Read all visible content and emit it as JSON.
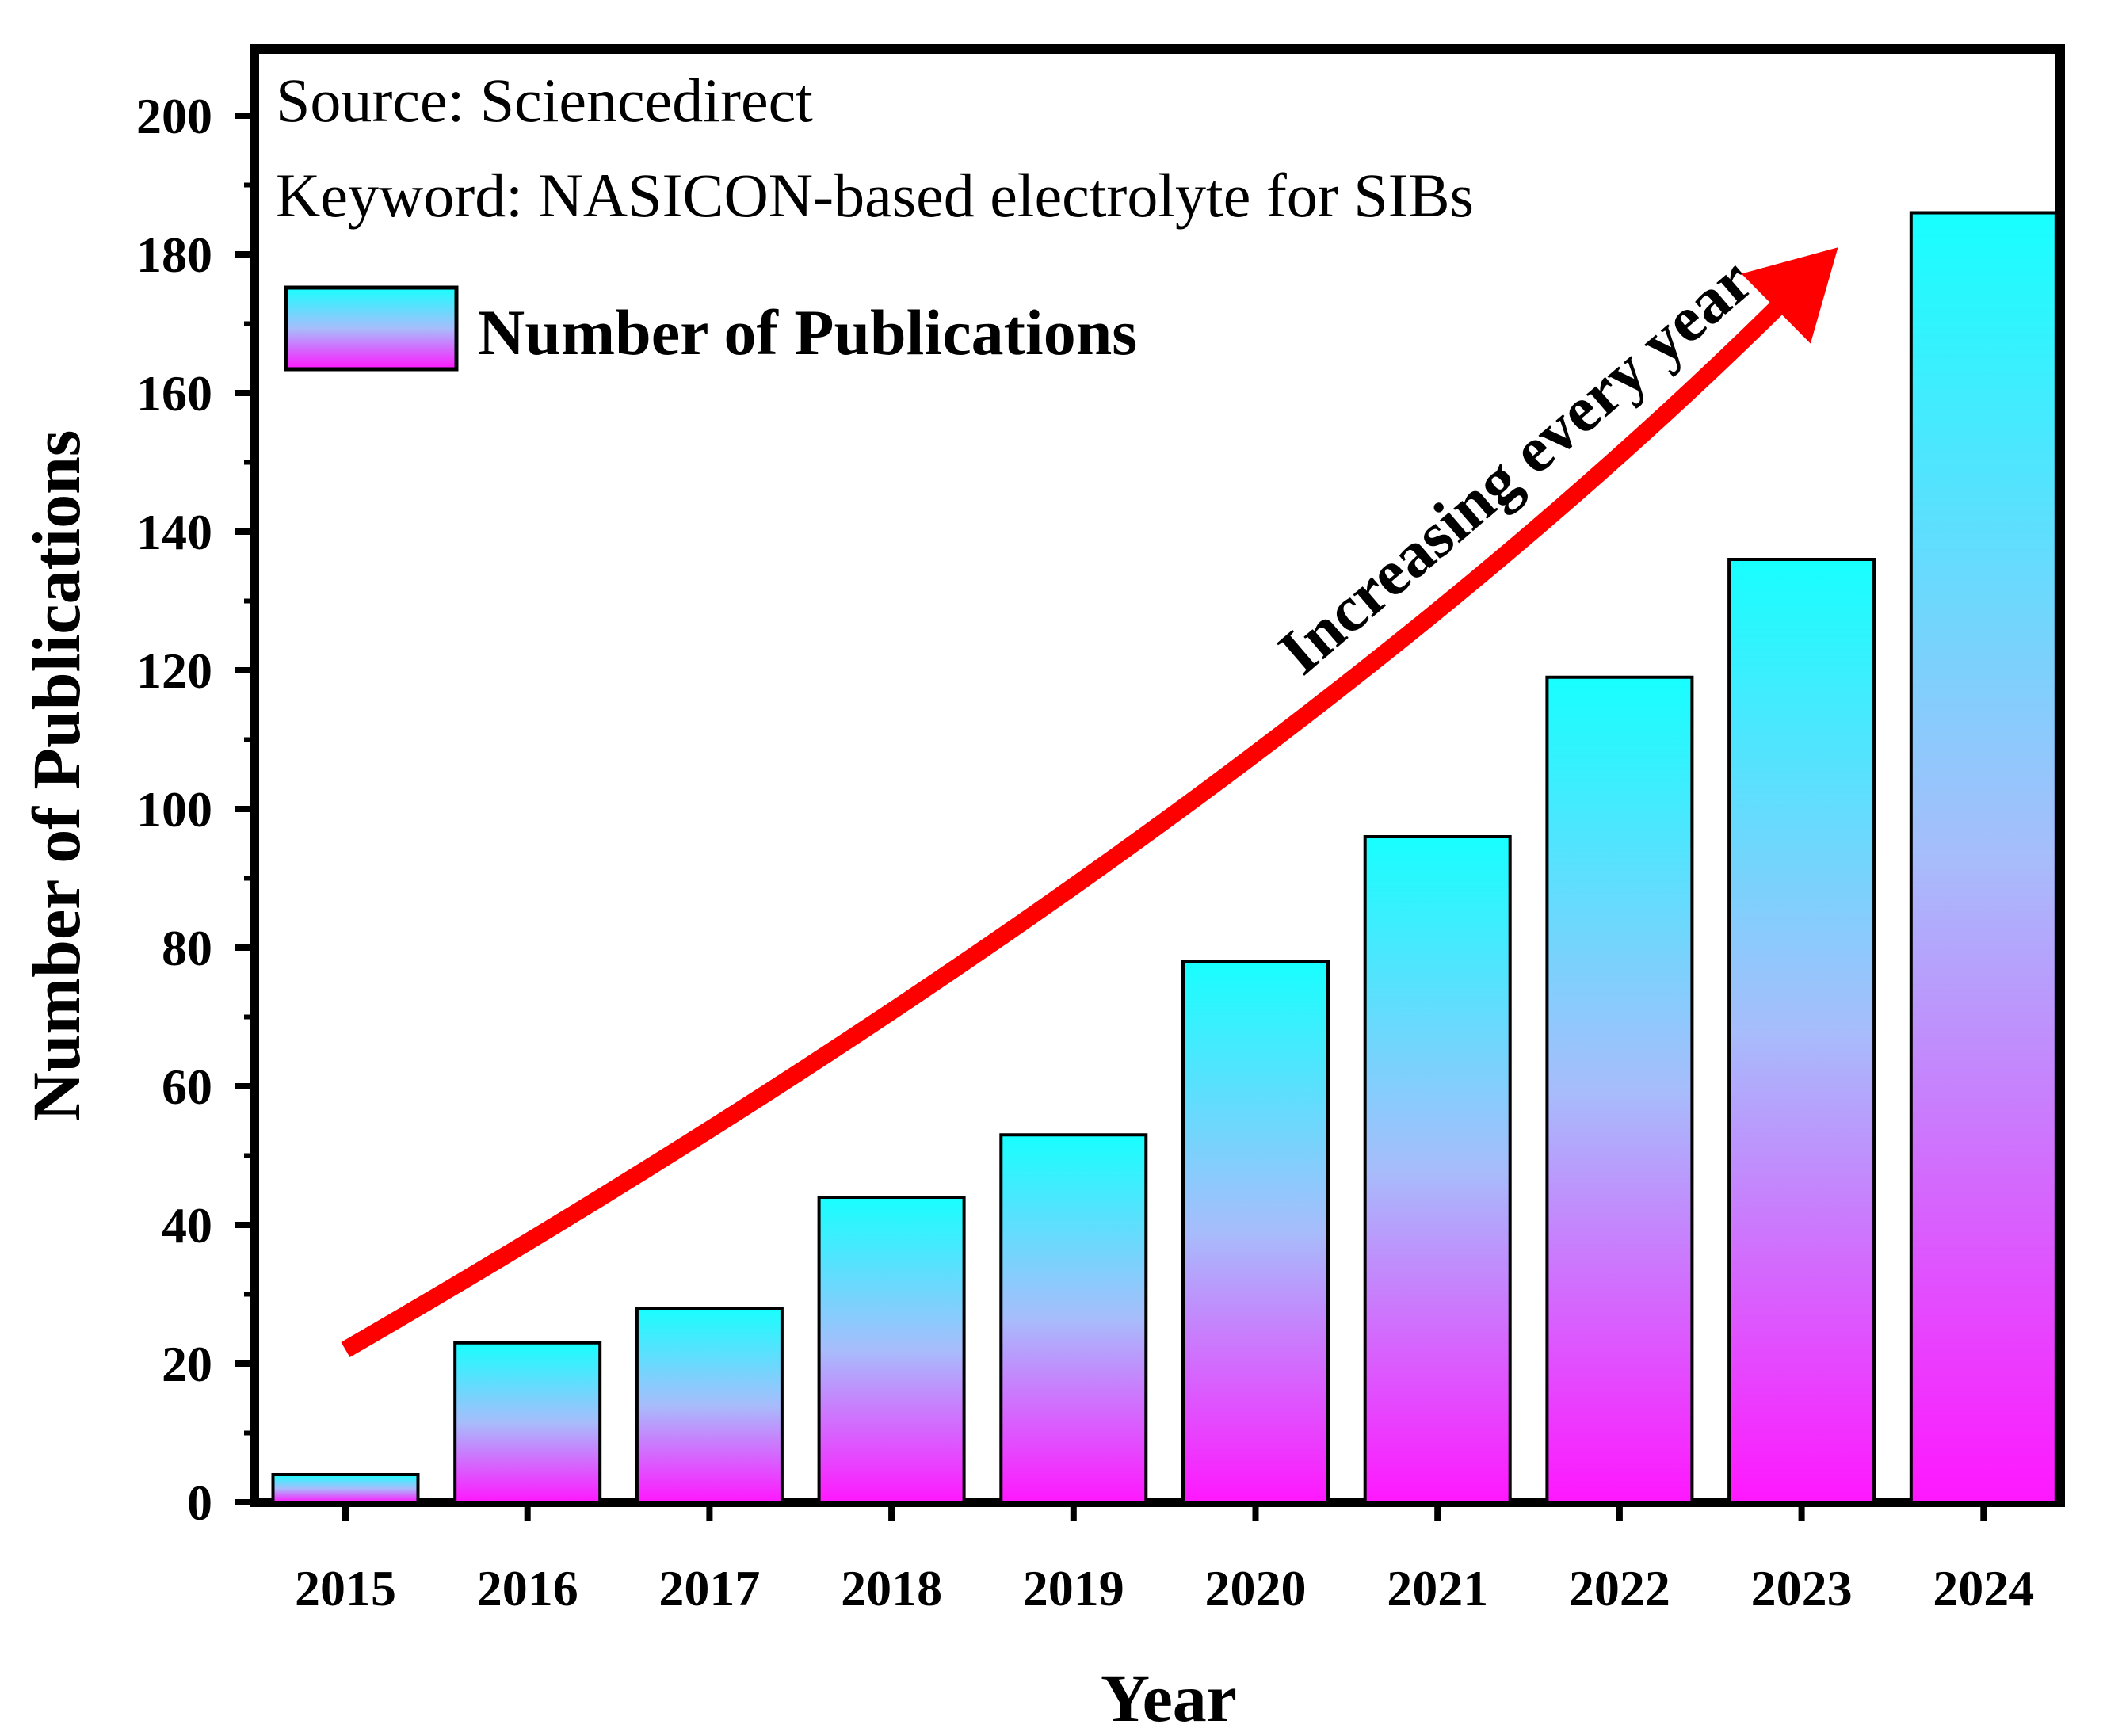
{
  "chart_data": {
    "type": "bar",
    "categories": [
      "2015",
      "2016",
      "2017",
      "2018",
      "2019",
      "2020",
      "2021",
      "2022",
      "2023",
      "2024"
    ],
    "series": [
      {
        "name": "Number of Publications",
        "values": [
          4,
          23,
          28,
          44,
          53,
          78,
          96,
          119,
          136,
          186
        ]
      }
    ],
    "xlabel": "Year",
    "ylabel": "Number of Publications",
    "ylim": [
      0,
      210
    ],
    "yticks": [
      0,
      20,
      40,
      60,
      80,
      100,
      120,
      140,
      160,
      180,
      200
    ],
    "ytick_labels": [
      "0",
      "20",
      "40",
      "60",
      "80",
      "100",
      "120",
      "140",
      "160",
      "180",
      "200"
    ],
    "annotations": {
      "source": "Source: Sciencedirect",
      "keyword": "Keyword: NASICON-based electrolyte for SIBs",
      "trend": "Increasing every year"
    },
    "trend_arrow": {
      "start": {
        "x": 2015,
        "y": 22
      },
      "control": {
        "x": 2020,
        "y": 98
      },
      "end": {
        "x": 2023.2,
        "y": 181
      }
    },
    "legend": {
      "position": "top-left",
      "label": "Number of Publications"
    },
    "grid": false
  },
  "colors": {
    "bar_top": "#17ffff",
    "bar_mid": "#a7bdfb",
    "bar_bottom": "#ff17ff",
    "trend_arrow": "#ff0000",
    "axis": "#000000"
  }
}
